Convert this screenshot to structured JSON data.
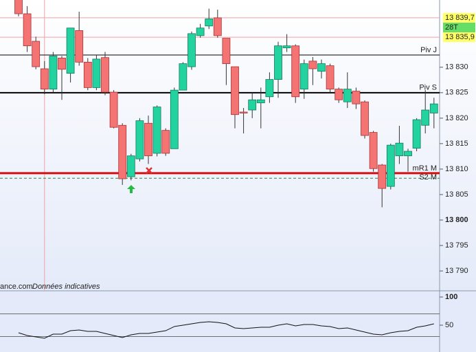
{
  "chart_data": [
    {
      "type": "candlestick",
      "open": [
        13844,
        13840.5,
        13835.1,
        13829.7,
        13825.7,
        13831.8,
        13828.8,
        13837.2,
        13831,
        13826,
        13831.9,
        13825.1,
        13818.6,
        13808.5,
        13812,
        13819,
        13813.1,
        13817.6,
        13814,
        13825.5,
        13830.1,
        13836.2,
        13838.1,
        13839.7,
        13835.7,
        13830.1,
        13821.2,
        13821.6,
        13823,
        13824.2,
        13827.6,
        13833.8,
        13834.2,
        13825.7,
        13831.2,
        13829.2,
        13830.3,
        13825.7,
        13823.2,
        13825.3,
        13823.2,
        13817.2,
        13810.8,
        13806.6,
        13812.6,
        13812.6,
        13814.1,
        13818.6,
        13821
      ],
      "high": [
        13845,
        13842,
        13836,
        13831.2,
        13833,
        13832.2,
        13837.7,
        13840.9,
        13831.8,
        13832.4,
        13833,
        13825.5,
        13819,
        13813,
        13820,
        13820.5,
        13822.5,
        13818,
        13826,
        13831,
        13837,
        13838.5,
        13841.5,
        13841.3,
        13835.7,
        13830.1,
        13822,
        13825,
        13826,
        13829,
        13835,
        13836.5,
        13834.5,
        13831.5,
        13832,
        13831.5,
        13830.7,
        13826,
        13829,
        13826,
        13823.5,
        13817.5,
        13811,
        13815,
        13818.5,
        13814,
        13820,
        13825.5,
        13824
      ],
      "low": [
        13840,
        13833,
        13829.6,
        13824.7,
        13825,
        13823.6,
        13827,
        13830.3,
        13825.5,
        13825.5,
        13824.5,
        13818,
        13806.9,
        13807.8,
        13811.5,
        13811,
        13812.5,
        13812.6,
        13814,
        13825.5,
        13829.5,
        13835.8,
        13837.5,
        13835.8,
        13826.5,
        13818,
        13817,
        13820,
        13818,
        13823,
        13824,
        13833,
        13823,
        13823.8,
        13826.5,
        13827.8,
        13825,
        13823,
        13822,
        13821.8,
        13816,
        13809.5,
        13802.5,
        13806,
        13811,
        13809.5,
        13813.5,
        13817,
        13818
      ],
      "close": [
        13840.5,
        13834.2,
        13830.1,
        13825.7,
        13832.2,
        13829.6,
        13837.7,
        13831,
        13826,
        13831.6,
        13825.1,
        13818.2,
        13808.1,
        13812.6,
        13819.5,
        13812.6,
        13822.2,
        13813.1,
        13825.5,
        13830.7,
        13836.6,
        13837.7,
        13839.5,
        13836.2,
        13830.7,
        13820.7,
        13821,
        13823.6,
        13823.6,
        13827.6,
        13834.2,
        13834.2,
        13824.2,
        13830.7,
        13829.7,
        13830.7,
        13825.7,
        13823.6,
        13825.7,
        13822.8,
        13816.6,
        13810.1,
        13806.2,
        13814.7,
        13815.1,
        13813.5,
        13819.7,
        13821.6,
        13822.8
      ],
      "up_color": "#22d3a0",
      "down_color": "#f47373",
      "ylim": [
        13786.1,
        13843.2
      ],
      "yticks": [
        {
          "value": 13790,
          "label": "13 790"
        },
        {
          "value": 13795,
          "label": "13 795"
        },
        {
          "value": 13800,
          "label": "13 800",
          "bold": true
        },
        {
          "value": 13805,
          "label": "13 805"
        },
        {
          "value": 13810,
          "label": "13 810"
        },
        {
          "value": 13815,
          "label": "13 815"
        },
        {
          "value": 13820,
          "label": "13 820"
        },
        {
          "value": 13825,
          "label": "13 825"
        },
        {
          "value": 13830,
          "label": "13 830"
        }
      ],
      "levels": [
        {
          "label": "Piv J",
          "value": 13832.4,
          "color": "#000000",
          "width": 1
        },
        {
          "label": "Piv S",
          "value": 13825,
          "color": "#000000",
          "width": 2
        },
        {
          "label": "mR1 M",
          "value": 13809.2,
          "color": "#d01010",
          "width": 3
        },
        {
          "label": "S2 M",
          "value": 13808.2,
          "color": "#228833",
          "width": 1,
          "dashed": true
        }
      ],
      "tags": [
        {
          "label": "13 839,7",
          "value": 13839.7,
          "color": "#ffff66"
        },
        {
          "label": "28T",
          "color": "#66dd66"
        },
        {
          "label": "13 835,9",
          "value": 13835.9,
          "color": "#ffff66"
        }
      ],
      "cursor_index": 3,
      "watermark": [
        "ance.com",
        "Données indicatives"
      ]
    },
    {
      "type": "line",
      "values": [
        36.6,
        31.7,
        29.3,
        26.8,
        34.1,
        34.1,
        40.2,
        41.5,
        39,
        39,
        35.4,
        31.7,
        28,
        32.9,
        35.4,
        35.4,
        37.8,
        40.2,
        47.6,
        50,
        52.4,
        54.9,
        56.1,
        54.9,
        52.4,
        45.1,
        43.9,
        45.1,
        46.3,
        46.3,
        50,
        52.4,
        48.8,
        51.2,
        51.2,
        48.8,
        47.6,
        43.9,
        45.1,
        41.5,
        37.8,
        34.1,
        32.9,
        36.6,
        39,
        40.2,
        46.3,
        48.8,
        52.4
      ],
      "color": "#111111",
      "ylim": [
        2.4,
        111
      ],
      "yticks": [
        {
          "value": 100,
          "bold": true
        },
        {
          "value": 50
        }
      ],
      "bands": [
        70,
        30
      ]
    }
  ]
}
